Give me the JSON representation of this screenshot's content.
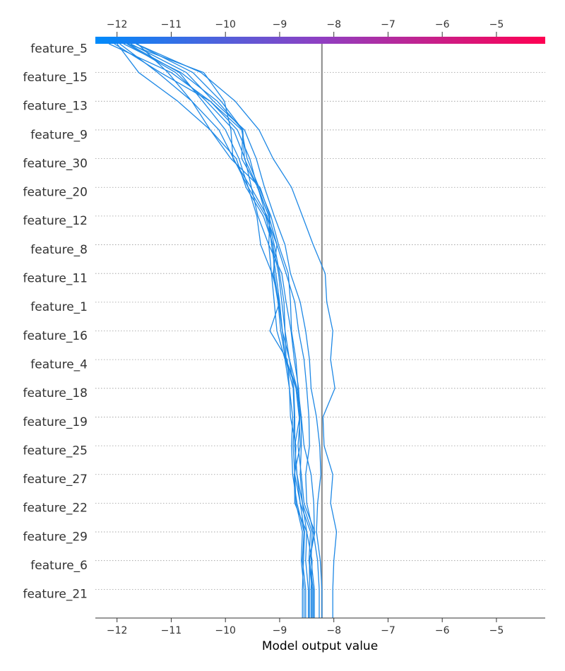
{
  "chart_data": {
    "type": "line",
    "title": "",
    "xlabel": "Model output value",
    "ylabel": "",
    "xlim": [
      -12.4,
      -4.1
    ],
    "x_ticks": [
      -12,
      -11,
      -10,
      -9,
      -8,
      -7,
      -6,
      -5
    ],
    "x_tick_labels": [
      "−12",
      "−11",
      "−10",
      "−9",
      "−8",
      "−7",
      "−6",
      "−5"
    ],
    "base_value": -8.22,
    "features": [
      "feature_5",
      "feature_15",
      "feature_13",
      "feature_9",
      "feature_30",
      "feature_20",
      "feature_12",
      "feature_8",
      "feature_11",
      "feature_1",
      "feature_16",
      "feature_4",
      "feature_18",
      "feature_19",
      "feature_25",
      "feature_27",
      "feature_22",
      "feature_29",
      "feature_6",
      "feature_21"
    ],
    "colormap": {
      "low": "#008bfb",
      "mid": "#8f3fc2",
      "high": "#ff0052"
    },
    "line_color": "#1e88e5",
    "series": [
      {
        "values": [
          -8.47,
          -8.52,
          -8.5,
          -8.72,
          -8.73,
          -8.62,
          -8.64,
          -8.7,
          -8.89,
          -8.95,
          -9.0,
          -9.07,
          -9.15,
          -9.2,
          -9.41,
          -9.55,
          -9.78,
          -10.28,
          -11.0,
          -12.15
        ]
      },
      {
        "values": [
          -8.36,
          -8.42,
          -8.4,
          -8.58,
          -8.62,
          -8.6,
          -8.6,
          -8.68,
          -8.82,
          -8.9,
          -8.96,
          -9.02,
          -9.13,
          -9.26,
          -9.58,
          -9.85,
          -10.12,
          -10.62,
          -11.25,
          -11.95
        ]
      },
      {
        "values": [
          -8.42,
          -8.4,
          -8.5,
          -8.58,
          -8.68,
          -8.72,
          -8.63,
          -8.68,
          -8.88,
          -8.9,
          -8.92,
          -9.0,
          -9.1,
          -9.23,
          -9.53,
          -9.86,
          -9.9,
          -10.02,
          -10.4,
          -11.8
        ]
      },
      {
        "values": [
          -8.58,
          -8.56,
          -8.54,
          -8.62,
          -8.68,
          -8.72,
          -8.72,
          -8.74,
          -8.82,
          -8.95,
          -9.02,
          -9.1,
          -9.12,
          -9.3,
          -9.62,
          -9.8,
          -10.28,
          -10.88,
          -11.6,
          -12.0
        ]
      },
      {
        "values": [
          -8.38,
          -8.45,
          -8.35,
          -8.55,
          -8.6,
          -8.66,
          -8.62,
          -8.65,
          -8.73,
          -8.79,
          -8.88,
          -8.96,
          -9.2,
          -9.18,
          -9.36,
          -9.9,
          -10.28,
          -10.62,
          -11.06,
          -11.62
        ]
      },
      {
        "values": [
          -8.4,
          -8.46,
          -8.43,
          -8.62,
          -8.72,
          -8.75,
          -8.73,
          -8.75,
          -8.89,
          -8.98,
          -9.03,
          -9.12,
          -9.05,
          -9.25,
          -9.4,
          -9.65,
          -9.68,
          -10.08,
          -10.6,
          -11.65
        ]
      },
      {
        "values": [
          -8.55,
          -8.6,
          -8.58,
          -8.7,
          -8.72,
          -8.7,
          -8.8,
          -8.82,
          -8.9,
          -9.05,
          -9.1,
          -9.15,
          -9.2,
          -9.4,
          -9.52,
          -9.64,
          -9.85,
          -10.35,
          -10.92,
          -11.82
        ]
      },
      {
        "values": [
          -8.52,
          -8.58,
          -8.55,
          -8.68,
          -8.76,
          -8.78,
          -8.76,
          -8.82,
          -8.86,
          -9.18,
          -9.0,
          -9.14,
          -9.35,
          -9.42,
          -9.58,
          -9.75,
          -10.0,
          -10.42,
          -10.85,
          -11.8
        ]
      },
      {
        "values": [
          -8.45,
          -8.45,
          -8.36,
          -8.37,
          -8.42,
          -8.55,
          -8.6,
          -8.66,
          -8.7,
          -8.78,
          -8.8,
          -8.84,
          -9.02,
          -9.16,
          -9.38,
          -9.6,
          -9.7,
          -10.28,
          -11.2,
          -12.05
        ]
      },
      {
        "values": [
          -8.27,
          -8.3,
          -8.38,
          -8.5,
          -8.52,
          -8.45,
          -8.46,
          -8.5,
          -8.55,
          -8.65,
          -8.72,
          -8.88,
          -9.05,
          -9.2,
          -9.4,
          -9.7,
          -9.68,
          -10.15,
          -10.82,
          -11.88
        ]
      },
      {
        "values": [
          -8.22,
          -8.25,
          -8.32,
          -8.3,
          -8.24,
          -8.26,
          -8.32,
          -8.42,
          -8.45,
          -8.52,
          -8.62,
          -8.8,
          -8.9,
          -9.1,
          -9.28,
          -9.43,
          -9.65,
          -10.22,
          -10.72,
          -11.75
        ]
      },
      {
        "values": [
          -8.02,
          -8.0,
          -7.95,
          -8.06,
          -8.02,
          -8.18,
          -8.2,
          -7.98,
          -8.06,
          -8.02,
          -8.13,
          -8.16,
          -8.38,
          -8.58,
          -8.78,
          -9.12,
          -9.38,
          -9.82,
          -10.45,
          -11.65
        ]
      }
    ]
  }
}
